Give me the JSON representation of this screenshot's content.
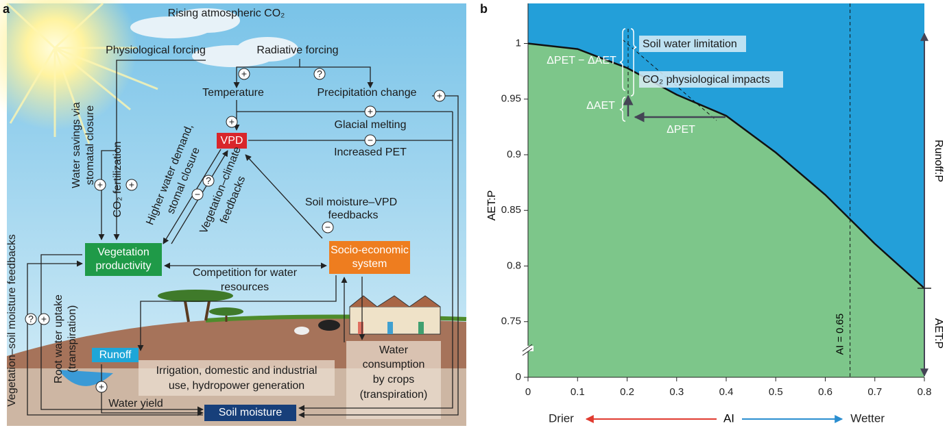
{
  "diagram": {
    "panel_label": "a",
    "rising_co2": "Rising atmospheric CO₂",
    "physiological_forcing": "Physiological forcing",
    "radiative_forcing": "Radiative forcing",
    "temperature": "Temperature",
    "precipitation_change": "Precipitation change",
    "glacial_melting": "Glacial melting",
    "vpd": "VPD",
    "increased_pet": "Increased PET",
    "water_savings": [
      "Water savings via",
      "stomatal closure"
    ],
    "co2_fertilization": "CO₂ fertilization",
    "higher_water_demand": [
      "Higher water demand,",
      "stomal closure"
    ],
    "vegetation_climate": [
      "Vegetation–climate",
      "feedbacks"
    ],
    "soil_moisture_vpd": [
      "Soil moisture–VPD",
      "feedbacks"
    ],
    "vegetation_productivity": [
      "Vegetation",
      "productivity"
    ],
    "socio_economic": [
      "Socio-economic",
      "system"
    ],
    "competition": [
      "Competition for water",
      "resources"
    ],
    "veg_soil_feedbacks": "Vegetation–soil moisture feedbacks",
    "root_water_uptake": [
      "Root water uptake",
      "(transpiration)"
    ],
    "runoff": "Runoff",
    "irrigation": [
      "Irrigation, domestic and industrial",
      "use, hydropower generation"
    ],
    "water_consumption": [
      "Water",
      "consumption",
      "by crops",
      "(transpiration)"
    ],
    "water_yield": "Water yield",
    "soil_moisture": "Soil moisture",
    "signs": [
      "+",
      "?",
      "+",
      "+",
      "+",
      "−",
      "+",
      "+",
      "−",
      "?",
      "−",
      "?",
      "+",
      "+"
    ]
  },
  "chart_data": {
    "type": "area",
    "panel_label": "b",
    "x_label": "AI",
    "y_label": "AET:P",
    "x_direction_labels": [
      "Drier",
      "Wetter"
    ],
    "x": [
      0,
      0.1,
      0.2,
      0.3,
      0.4,
      0.5,
      0.6,
      0.7,
      0.8
    ],
    "values": [
      1,
      0.995,
      0.978,
      0.954,
      0.935,
      0.902,
      0.864,
      0.82,
      0.78
    ],
    "color": "#111111",
    "fill_below": "#7dc68a",
    "fill_above": "#239fd9",
    "xlim": [
      0,
      0.8
    ],
    "ylim": [
      0,
      1.036
    ],
    "y_break": [
      0,
      0.7
    ],
    "xticks": [
      0,
      0.1,
      0.2,
      0.3,
      0.4,
      0.5,
      0.6,
      0.7,
      0.8
    ],
    "yticks": [
      0,
      0.75,
      0.8,
      0.85,
      0.9,
      0.95,
      1
    ],
    "ai_line": {
      "x": 0.65,
      "label": "AI = 0.65"
    },
    "annotations": {
      "runoff": "Runoff:P",
      "aet": "AET:P",
      "soil_water": "Soil water limitation",
      "co2_impacts": "CO₂ physiological impacts",
      "dpet_daet": "ΔPET − ΔAET",
      "daet": "ΔAET",
      "dpet": "ΔPET"
    }
  }
}
